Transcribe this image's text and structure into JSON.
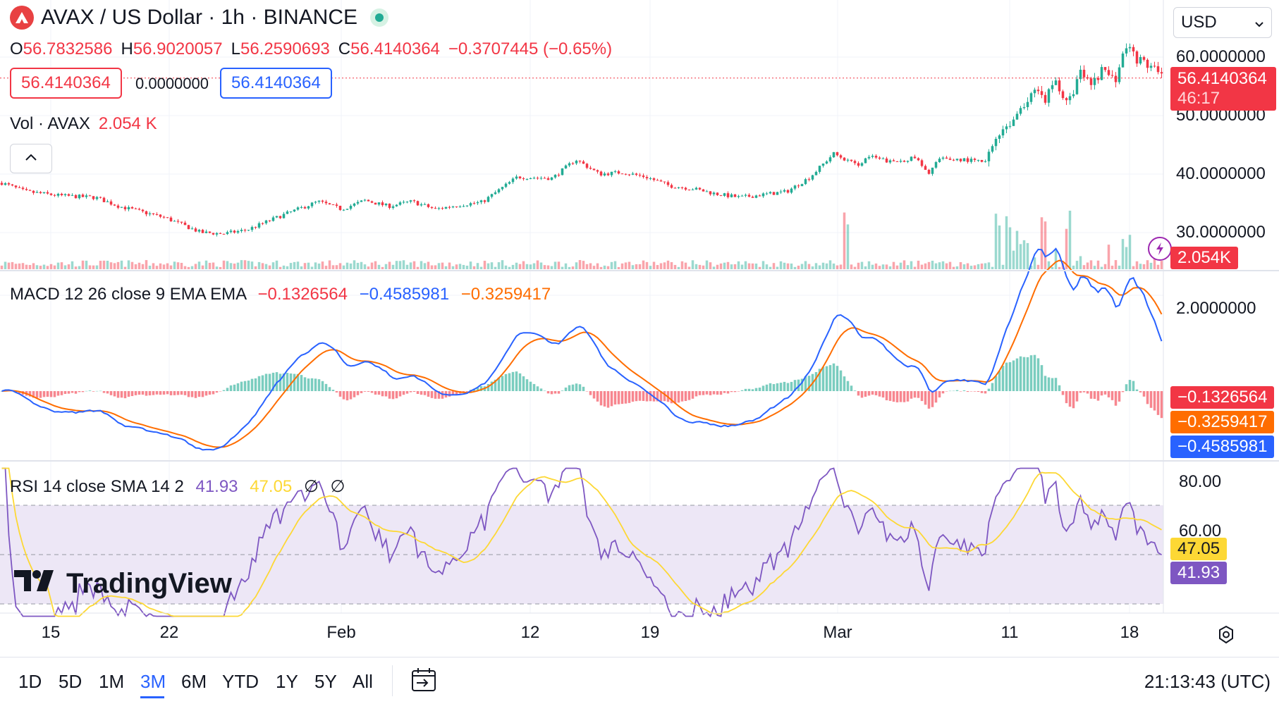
{
  "header": {
    "symbol_title": "AVAX / US Dollar · 1h · BINANCE",
    "ohlc": {
      "o_label": "O",
      "o_value": "56.7832586",
      "h_label": "H",
      "h_value": "56.9020057",
      "l_label": "L",
      "l_value": "56.2590693",
      "c_label": "C",
      "c_value": "56.4140364",
      "change": "−0.3707445 (−0.65%)"
    },
    "sell_price": "56.4140364",
    "spread": "0.0000000",
    "buy_price": "56.4140364",
    "volume_label": "Vol · AVAX",
    "volume_value": "2.054 K",
    "currency": "USD"
  },
  "indicators": {
    "macd_label": "MACD 12 26 close 9 EMA EMA",
    "macd_hist": "−0.1326564",
    "macd_line": "−0.4585981",
    "macd_signal": "−0.3259417",
    "rsi_label": "RSI 14 close SMA 14 2",
    "rsi_value": "41.93",
    "rsi_sma": "47.05",
    "rsi_extra1": "∅",
    "rsi_extra2": "∅"
  },
  "price_axis": {
    "ticks": [
      "60.0000000",
      "50.0000000",
      "40.0000000",
      "30.0000000"
    ],
    "last_price": "56.4140364",
    "countdown": "46:17",
    "volume_tag": "2.054K",
    "macd_tick": "2.0000000",
    "macd_hist_tag": "−0.1326564",
    "macd_signal_tag": "−0.3259417",
    "macd_line_tag": "−0.4585981",
    "rsi_ticks": [
      "80.00",
      "60.00"
    ],
    "rsi_sma_tag": "47.05",
    "rsi_tag": "41.93"
  },
  "time_axis": [
    "15",
    "22",
    "Feb",
    "12",
    "19",
    "Mar",
    "11",
    "18"
  ],
  "watermark": "TradingView",
  "toolbar": {
    "ranges": [
      "1D",
      "5D",
      "1M",
      "3M",
      "6M",
      "YTD",
      "1Y",
      "5Y",
      "All"
    ],
    "active_range": "3M",
    "clock": "21:13:43 (UTC)"
  },
  "colors": {
    "up": "#22ab94",
    "down": "#f23645",
    "macd": "#2962ff",
    "signal": "#ff6d00",
    "rsi": "#7e57c2",
    "rsi_sma": "#fdd835",
    "rsi_band": "#ede7f6"
  },
  "chart_data": [
    {
      "type": "candlestick",
      "title": "AVAX / US Dollar · 1h · BINANCE",
      "ylim": [
        26.5,
        65
      ],
      "close_path": [
        [
          0,
          38.5
        ],
        [
          2,
          37
        ],
        [
          5,
          36.3
        ],
        [
          8,
          36.0
        ],
        [
          10,
          34.5
        ],
        [
          14,
          32.5
        ],
        [
          17,
          30.0
        ],
        [
          19,
          29.8
        ],
        [
          21,
          30.5
        ],
        [
          24,
          33.0
        ],
        [
          27,
          35.3
        ],
        [
          29,
          34.0
        ],
        [
          31,
          35.5
        ],
        [
          33,
          34.5
        ],
        [
          35,
          35.3
        ],
        [
          37,
          34.0
        ],
        [
          39,
          34.7
        ],
        [
          41,
          35.2
        ],
        [
          44,
          39.5
        ],
        [
          47,
          39.3
        ],
        [
          49,
          42.5
        ],
        [
          51,
          40.0
        ],
        [
          53,
          40.3
        ],
        [
          55,
          39.5
        ],
        [
          57,
          38.0
        ],
        [
          59,
          37.5
        ],
        [
          61,
          36.6
        ],
        [
          63,
          36.0
        ],
        [
          65,
          36.5
        ],
        [
          67,
          37.0
        ],
        [
          69,
          39.5
        ],
        [
          71,
          43.5
        ],
        [
          73,
          41.5
        ],
        [
          74,
          43.0
        ],
        [
          76,
          42.0
        ],
        [
          78,
          42.8
        ],
        [
          79,
          40.0
        ],
        [
          80,
          42.5
        ],
        [
          82,
          42.5
        ],
        [
          84,
          42.0
        ],
        [
          85,
          47.0
        ],
        [
          87,
          50.5
        ],
        [
          88,
          54.5
        ],
        [
          89,
          52.5
        ],
        [
          90,
          56.0
        ],
        [
          91,
          51.5
        ],
        [
          92,
          57.5
        ],
        [
          93,
          55.0
        ],
        [
          94,
          58.0
        ],
        [
          95,
          56.0
        ],
        [
          96,
          62.0
        ],
        [
          97,
          59.5
        ],
        [
          98,
          58.5
        ],
        [
          99,
          56.4
        ]
      ],
      "volume": {
        "last": 2054,
        "spike_positions": [
          72,
          85,
          86,
          87,
          89,
          91,
          96
        ],
        "level": "low with late spikes"
      }
    },
    {
      "type": "line",
      "title": "MACD 12 26 close 9 EMA EMA",
      "series": [
        {
          "name": "MACD",
          "last": -0.4585981
        },
        {
          "name": "Signal",
          "last": -0.3259417
        },
        {
          "name": "Histogram",
          "last": -0.1326564
        }
      ],
      "range": [
        -1.0,
        2.3
      ]
    },
    {
      "type": "line",
      "title": "RSI 14 close SMA 14 2",
      "series": [
        {
          "name": "RSI",
          "last": 41.93
        },
        {
          "name": "RSI-based MA",
          "last": 47.05
        }
      ],
      "bands": [
        30,
        70
      ],
      "ylim": [
        25,
        85
      ]
    }
  ]
}
